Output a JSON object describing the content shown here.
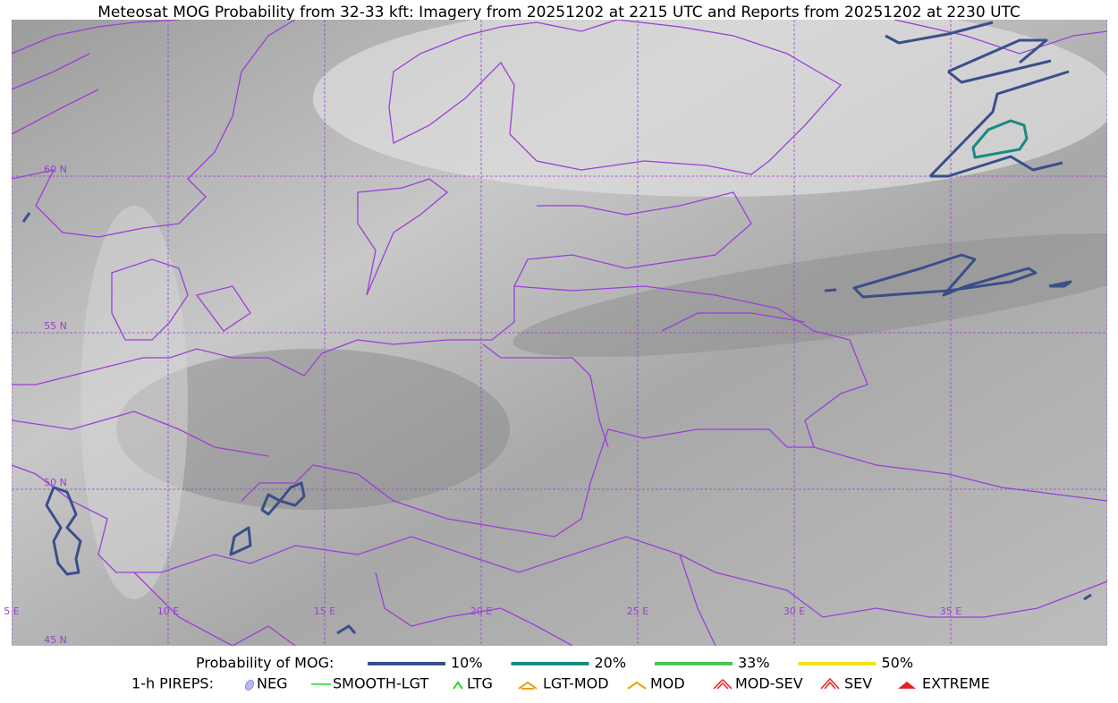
{
  "title": "Meteosat MOG Probability from 32-33 kft: Imagery from 20251202 at 2215 UTC and Reports from 20251202 at 2230 UTC",
  "grid_labels": {
    "lat": [
      "60 N",
      "55 N",
      "50 N",
      "45 N"
    ],
    "lon": [
      "5 E",
      "10 E",
      "15 E",
      "20 E",
      "25 E",
      "30 E",
      "35 E"
    ]
  },
  "legend": {
    "probability_title": "Probability of MOG:",
    "probability_items": [
      {
        "label": "10%",
        "color": "#3a4f8a"
      },
      {
        "label": "20%",
        "color": "#1a8a80"
      },
      {
        "label": "33%",
        "color": "#4cc45a"
      },
      {
        "label": "50%",
        "color": "#f5e01a"
      }
    ],
    "pireps_title": "1-h PIREPS:",
    "pireps_items": [
      "NEG",
      "SMOOTH-LGT",
      "LTG",
      "LGT-MOD",
      "MOD",
      "MOD-SEV",
      "SEV",
      "EXTREME"
    ]
  }
}
